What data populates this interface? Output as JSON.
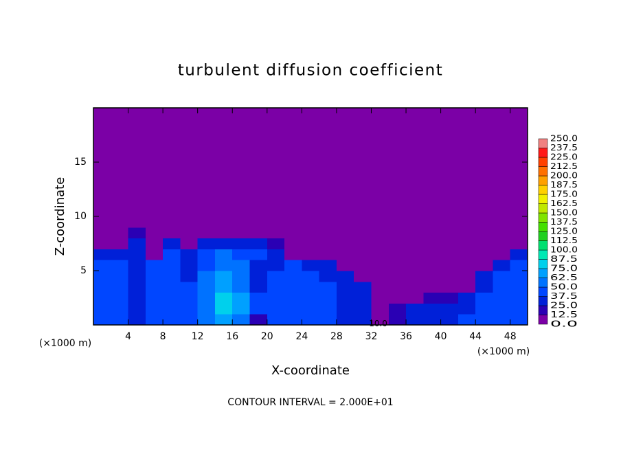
{
  "chart_data": {
    "type": "heatmap",
    "title": "turbulent diffusion coefficient",
    "xlabel": "X-coordinate",
    "ylabel": "Z-coordinate",
    "unit_labels": [
      "(×1000 m)",
      "(×1000 m)"
    ],
    "footer": "CONTOUR INTERVAL = 2.000E+01",
    "xlim": [
      0,
      50
    ],
    "ylim": [
      0,
      20
    ],
    "xticks": [
      4,
      8,
      12,
      16,
      20,
      24,
      28,
      32,
      36,
      40,
      44,
      48
    ],
    "yticks": [
      5,
      10,
      15
    ],
    "x_edges": [
      0,
      2,
      4,
      6,
      8,
      10,
      12,
      14,
      16,
      18,
      20,
      22,
      24,
      26,
      28,
      30,
      32,
      34,
      36,
      38,
      40,
      42,
      44,
      46,
      48,
      50
    ],
    "z_edges": [
      0,
      1,
      2,
      3,
      4,
      5,
      6,
      7,
      8,
      9,
      10,
      20
    ],
    "values": [
      [
        45,
        45,
        30,
        40,
        45,
        40,
        50,
        70,
        60,
        20,
        40,
        45,
        40,
        40,
        35,
        30,
        10,
        20,
        30,
        30,
        35,
        40,
        40,
        45,
        45
      ],
      [
        40,
        40,
        30,
        40,
        40,
        40,
        60,
        75,
        70,
        40,
        40,
        40,
        40,
        40,
        35,
        30,
        5,
        15,
        25,
        30,
        30,
        35,
        40,
        40,
        40
      ],
      [
        40,
        40,
        30,
        40,
        40,
        40,
        55,
        80,
        65,
        40,
        40,
        40,
        40,
        40,
        30,
        30,
        0,
        0,
        10,
        15,
        15,
        30,
        40,
        40,
        40
      ],
      [
        40,
        40,
        25,
        40,
        40,
        40,
        50,
        70,
        60,
        35,
        40,
        40,
        40,
        40,
        35,
        25,
        0,
        0,
        0,
        0,
        0,
        10,
        35,
        40,
        40
      ],
      [
        40,
        40,
        25,
        40,
        40,
        35,
        50,
        65,
        60,
        35,
        40,
        40,
        40,
        35,
        30,
        10,
        0,
        0,
        0,
        0,
        0,
        0,
        30,
        40,
        40
      ],
      [
        40,
        40,
        25,
        40,
        40,
        35,
        45,
        60,
        55,
        35,
        35,
        40,
        35,
        30,
        10,
        0,
        0,
        0,
        0,
        0,
        0,
        0,
        10,
        35,
        40
      ],
      [
        35,
        35,
        30,
        10,
        40,
        30,
        40,
        50,
        45,
        40,
        35,
        10,
        0,
        0,
        0,
        0,
        0,
        0,
        0,
        0,
        0,
        0,
        0,
        10,
        30
      ],
      [
        0,
        0,
        30,
        0,
        30,
        0,
        30,
        35,
        35,
        30,
        20,
        0,
        0,
        0,
        0,
        0,
        0,
        0,
        0,
        0,
        0,
        0,
        0,
        0,
        0
      ],
      [
        0,
        0,
        15,
        0,
        10,
        0,
        10,
        10,
        10,
        0,
        0,
        0,
        0,
        0,
        0,
        0,
        0,
        0,
        0,
        0,
        0,
        0,
        0,
        0,
        0
      ],
      [
        0,
        0,
        0,
        0,
        0,
        0,
        0,
        0,
        0,
        0,
        0,
        0,
        0,
        0,
        0,
        0,
        0,
        0,
        0,
        0,
        0,
        0,
        0,
        0,
        0
      ],
      [
        0,
        0,
        0,
        0,
        0,
        0,
        0,
        0,
        0,
        0,
        0,
        0,
        0,
        0,
        0,
        0,
        0,
        0,
        0,
        0,
        0,
        0,
        0,
        0,
        0
      ]
    ],
    "annotations": [
      {
        "text": "10.0",
        "x": 32.8,
        "z": 0.1
      }
    ],
    "colorbar": {
      "levels": [
        {
          "value": 0,
          "label": "0.0"
        },
        {
          "value": 12.5,
          "label": "12.5"
        },
        {
          "value": 25,
          "label": "25.0"
        },
        {
          "value": 37.5,
          "label": "37.5"
        },
        {
          "value": 50,
          "label": "50.0"
        },
        {
          "value": 62.5,
          "label": "62.5"
        },
        {
          "value": 75,
          "label": "75.0"
        },
        {
          "value": 87.5,
          "label": "87.5"
        },
        {
          "value": 100,
          "label": "100.0"
        },
        {
          "value": 112.5,
          "label": "112.5"
        },
        {
          "value": 125,
          "label": "125.0"
        },
        {
          "value": 137.5,
          "label": "137.5"
        },
        {
          "value": 150,
          "label": "150.0"
        },
        {
          "value": 162.5,
          "label": "162.5"
        },
        {
          "value": 175,
          "label": "175.0"
        },
        {
          "value": 187.5,
          "label": "187.5"
        },
        {
          "value": 200,
          "label": "200.0"
        },
        {
          "value": 212.5,
          "label": "212.5"
        },
        {
          "value": 225,
          "label": "225.0"
        },
        {
          "value": 237.5,
          "label": "237.5"
        },
        {
          "value": 250,
          "label": "250.0"
        }
      ],
      "colors": [
        "#7b00a6",
        "#2a00b4",
        "#0020d8",
        "#0046ff",
        "#0072ff",
        "#00a0ff",
        "#00d0ec",
        "#00e8b4",
        "#00e070",
        "#20d020",
        "#44e000",
        "#80e400",
        "#c0e800",
        "#f0f000",
        "#ffd000",
        "#ffa000",
        "#ff7000",
        "#ff4000",
        "#ff1818",
        "#f08080"
      ]
    }
  }
}
